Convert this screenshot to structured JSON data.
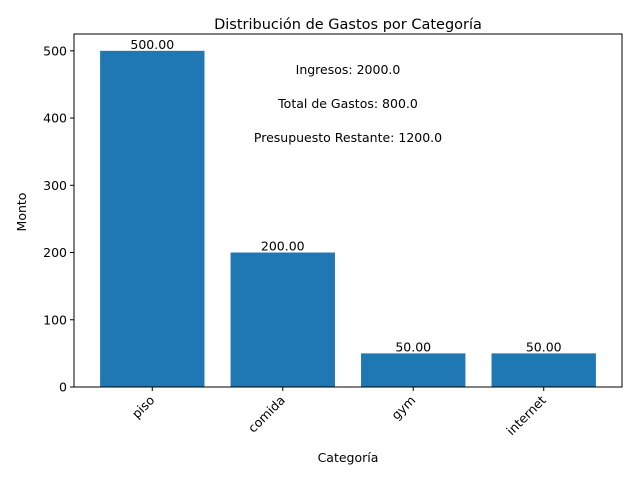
{
  "chart_data": {
    "type": "bar",
    "title": "Distribución de Gastos por Categoría",
    "xlabel": "Categoría",
    "ylabel": "Monto",
    "categories": [
      "piso",
      "comida",
      "gym",
      "internet"
    ],
    "values": [
      500,
      200,
      50,
      50
    ],
    "value_labels": [
      "500.00",
      "200.00",
      "50.00",
      "50.00"
    ],
    "ylim": [
      0,
      525
    ],
    "yticks": [
      0,
      100,
      200,
      300,
      400,
      500
    ],
    "grid": false,
    "bar_color": "#1f77b4",
    "annotations": [
      "Ingresos: 2000.0",
      "Total de Gastos: 800.0",
      "Presupuesto Restante: 1200.0"
    ]
  }
}
